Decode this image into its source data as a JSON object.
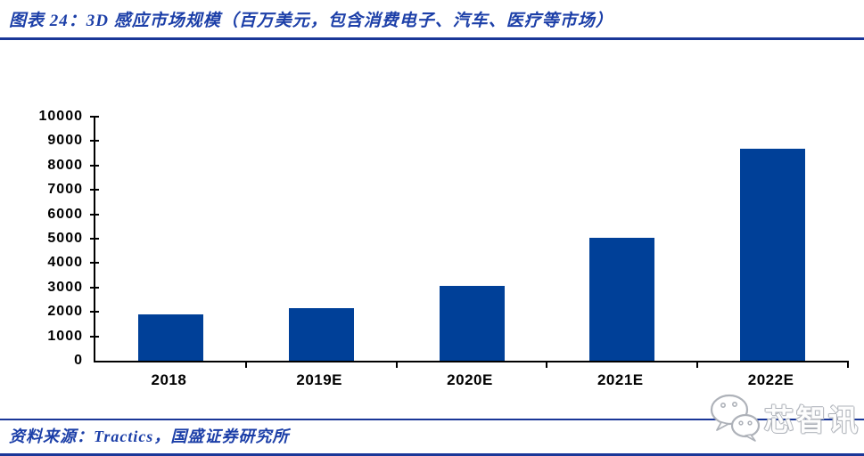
{
  "header": {
    "caption": "图表 24：3D 感应市场规模（百万美元，包含消费电子、汽车、医疗等市场）"
  },
  "chart_data": {
    "type": "bar",
    "title": "3D 感应市场规模（百万美元，包含消费电子、汽车、医疗等市场）",
    "categories": [
      "2018",
      "2019E",
      "2020E",
      "2021E",
      "2022E"
    ],
    "values": [
      1900,
      2150,
      3050,
      5050,
      8700
    ],
    "xlabel": "",
    "ylabel": "",
    "ylim": [
      0,
      10000
    ],
    "ytick_step": 1000,
    "ytick_labels": [
      "0",
      "1000",
      "2000",
      "3000",
      "4000",
      "5000",
      "6000",
      "7000",
      "8000",
      "9000",
      "10000"
    ],
    "bar_color": "#004098",
    "axis_color": "#000000",
    "grid": false,
    "legend_position": "none"
  },
  "footer": {
    "source": "资料来源：Tractics，国盛证券研究所"
  },
  "watermark": {
    "icon": "wechat-chat-bubbles-icon",
    "text": "芯智讯"
  },
  "colors": {
    "accent_text": "#1c3fa8",
    "rule": "#1a3798",
    "bar": "#004098",
    "watermark_gray": "#aeb2b9"
  }
}
